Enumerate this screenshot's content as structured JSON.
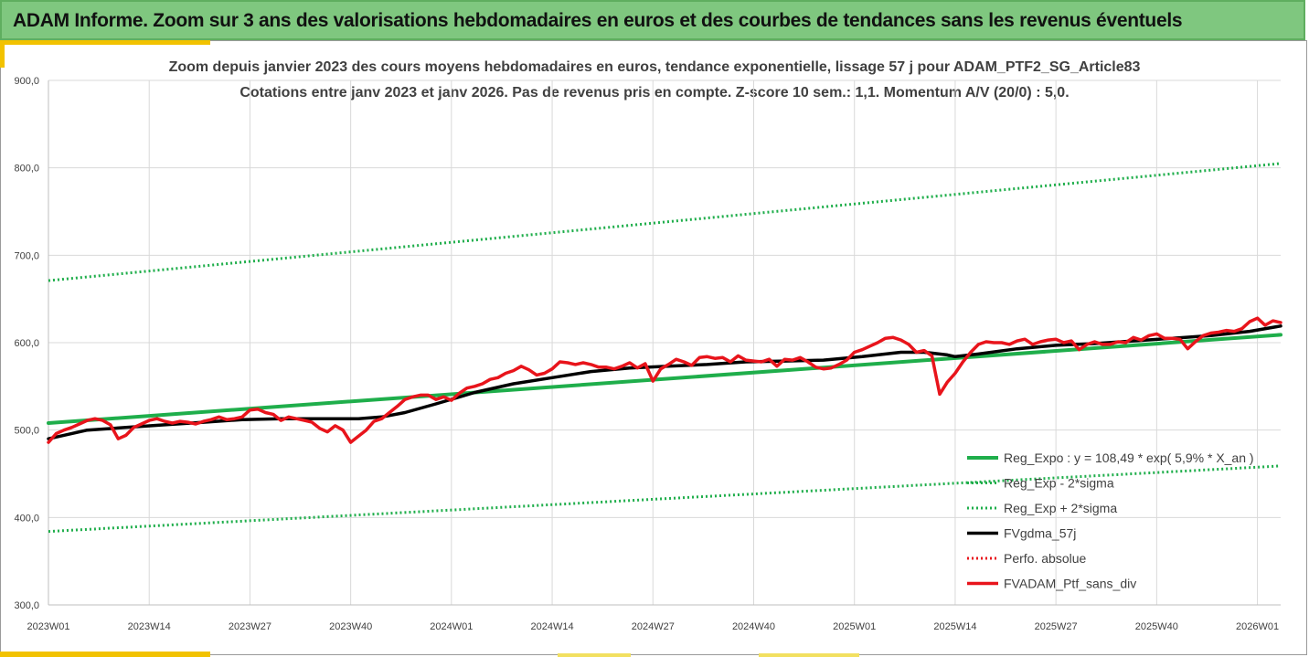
{
  "header": {
    "title": "ADAM Informe. Zoom sur 3 ans des valorisations hebdomadaires en euros et des courbes de tendances sans les revenus éventuels"
  },
  "chart_data": {
    "type": "line",
    "title_line1": "Zoom depuis janvier 2023 des cours moyens hebdomadaires  en euros, tendance exponentielle, lissage 57 j pour ADAM_PTF2_SG_Article83",
    "title_line2": "Cotations entre janv 2023 et janv 2026. Pas de revenus pris en compte. Z-score 10 sem.: 1,1. Momentum  A/V (20/0) : 5,0.",
    "ylim": [
      300,
      900
    ],
    "yticks": [
      "300,0",
      "400,0",
      "500,0",
      "600,0",
      "700,0",
      "800,0",
      "900,0"
    ],
    "xlim": [
      0,
      159
    ],
    "xtick_labels": [
      "2023W01",
      "2023W14",
      "2023W27",
      "2023W40",
      "2024W01",
      "2024W14",
      "2024W27",
      "2024W40",
      "2025W01",
      "2025W14",
      "2025W27",
      "2025W40",
      "2026W01"
    ],
    "xtick_positions": [
      0,
      13,
      26,
      39,
      52,
      65,
      78,
      91,
      104,
      117,
      130,
      143,
      156
    ],
    "legend": {
      "reg_expo": "Reg_Expo : y = 108,49 * exp( 5,9% *  X_an )",
      "minus2": "Reg_Exp - 2*sigma",
      "plus2": "Reg_Exp + 2*sigma",
      "fvgdma": "FVgdma_57j",
      "perfo": "Perfo. absolue",
      "fvadam": "FVADAM_Ptf_sans_div"
    },
    "colors": {
      "green": "#1fae4b",
      "black": "#000000",
      "red": "#e8141b",
      "grid": "#d9d9d9"
    },
    "series": [
      {
        "key": "reg_expo",
        "name": "Reg_Expo",
        "style": "solid",
        "x": [
          0,
          159
        ],
        "values": [
          508,
          609
        ]
      },
      {
        "key": "minus2",
        "name": "Reg_Exp - 2*sigma",
        "style": "dotted",
        "x": [
          0,
          159
        ],
        "values": [
          384,
          459
        ]
      },
      {
        "key": "plus2",
        "name": "Reg_Exp + 2*sigma",
        "style": "dotted",
        "x": [
          0,
          159
        ],
        "values": [
          671,
          805
        ]
      },
      {
        "key": "fvgdma",
        "name": "FVgdma_57j",
        "style": "solid",
        "x": [
          0,
          5,
          10,
          15,
          20,
          25,
          30,
          35,
          40,
          43,
          46,
          50,
          55,
          60,
          65,
          70,
          75,
          80,
          85,
          90,
          95,
          100,
          105,
          110,
          113,
          116,
          117,
          120,
          125,
          130,
          135,
          140,
          145,
          150,
          155,
          159
        ],
        "values": [
          490,
          500,
          503,
          506,
          509,
          512,
          513,
          513,
          513,
          515,
          520,
          530,
          543,
          553,
          560,
          567,
          571,
          573,
          575,
          578,
          579,
          580,
          584,
          589,
          589,
          586,
          584,
          587,
          593,
          597,
          599,
          602,
          605,
          608,
          613,
          619
        ]
      },
      {
        "key": "fvadam",
        "name": "FVADAM_Ptf_sans_div",
        "style": "solid",
        "x": [
          0,
          1,
          2,
          3,
          4,
          5,
          6,
          7,
          8,
          9,
          10,
          11,
          12,
          13,
          14,
          15,
          16,
          17,
          18,
          19,
          20,
          21,
          22,
          23,
          24,
          25,
          26,
          27,
          28,
          29,
          30,
          31,
          32,
          33,
          34,
          35,
          36,
          37,
          38,
          39,
          40,
          41,
          42,
          43,
          44,
          45,
          46,
          47,
          48,
          49,
          50,
          51,
          52,
          53,
          54,
          55,
          56,
          57,
          58,
          59,
          60,
          61,
          62,
          63,
          64,
          65,
          66,
          67,
          68,
          69,
          70,
          71,
          72,
          73,
          74,
          75,
          76,
          77,
          78,
          79,
          80,
          81,
          82,
          83,
          84,
          85,
          86,
          87,
          88,
          89,
          90,
          91,
          92,
          93,
          94,
          95,
          96,
          97,
          98,
          99,
          100,
          101,
          102,
          103,
          104,
          105,
          106,
          107,
          108,
          109,
          110,
          111,
          112,
          113,
          114,
          115,
          116,
          117,
          118,
          119,
          120,
          121,
          122,
          123,
          124,
          125,
          126,
          127,
          128,
          129,
          130,
          131,
          132,
          133,
          134,
          135,
          136,
          137,
          138,
          139,
          140,
          141,
          142,
          143,
          144,
          145,
          146,
          147,
          148,
          149,
          150,
          151,
          152,
          153,
          154,
          155,
          156,
          157,
          158,
          159
        ],
        "values": [
          486,
          496,
          500,
          503,
          507,
          511,
          513,
          511,
          506,
          490,
          494,
          503,
          507,
          511,
          513,
          510,
          508,
          510,
          509,
          507,
          510,
          512,
          515,
          512,
          513,
          515,
          523,
          524,
          520,
          518,
          511,
          515,
          513,
          511,
          509,
          502,
          498,
          505,
          500,
          486,
          493,
          500,
          510,
          513,
          520,
          527,
          535,
          538,
          540,
          540,
          535,
          538,
          534,
          542,
          548,
          550,
          553,
          558,
          560,
          565,
          568,
          573,
          569,
          563,
          565,
          570,
          578,
          577,
          575,
          577,
          575,
          572,
          572,
          570,
          573,
          577,
          571,
          576,
          556,
          570,
          575,
          581,
          578,
          574,
          583,
          584,
          582,
          583,
          578,
          585,
          580,
          579,
          578,
          581,
          573,
          581,
          580,
          583,
          578,
          572,
          570,
          571,
          575,
          580,
          589,
          592,
          596,
          600,
          605,
          606,
          603,
          598,
          589,
          591,
          585,
          541,
          555,
          565,
          578,
          589,
          598,
          601,
          600,
          600,
          598,
          602,
          604,
          598,
          601,
          603,
          604,
          600,
          602,
          592,
          598,
          601,
          598,
          598,
          601,
          600,
          606,
          603,
          608,
          610,
          605,
          605,
          604,
          593,
          601,
          608,
          611,
          612,
          614,
          613,
          616,
          624,
          628,
          620,
          625,
          623
        ]
      }
    ]
  }
}
